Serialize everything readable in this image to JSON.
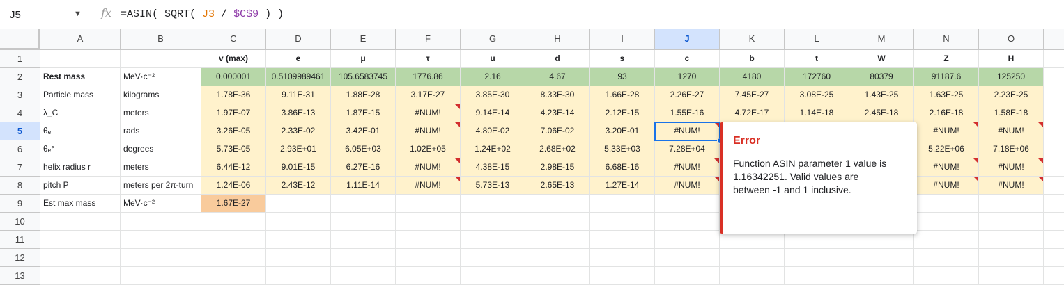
{
  "formula_bar": {
    "cell_ref": "J5",
    "fx": "fx",
    "formula_parts": [
      "=ASIN( SQRT( ",
      "J3",
      " / ",
      "$C$9",
      " ) )"
    ]
  },
  "columns": [
    "A",
    "B",
    "C",
    "D",
    "E",
    "F",
    "G",
    "H",
    "I",
    "J",
    "K",
    "L",
    "M",
    "N",
    "O"
  ],
  "selected_cell": "J5",
  "rows": [
    {
      "num": "1",
      "cells": [
        "",
        "",
        "v (max)",
        "e",
        "μ",
        "τ",
        "u",
        "d",
        "s",
        "c",
        "b",
        "t",
        "W",
        "Z",
        "H"
      ]
    },
    {
      "num": "2",
      "cells": [
        "Rest mass",
        "MeV·c⁻²",
        "0.000001",
        "0.5109989461",
        "105.6583745",
        "1776.86",
        "2.16",
        "4.67",
        "93",
        "1270",
        "4180",
        "172760",
        "80379",
        "91187.6",
        "125250"
      ]
    },
    {
      "num": "3",
      "cells": [
        "Particle mass",
        "kilograms",
        "1.78E-36",
        "9.11E-31",
        "1.88E-28",
        "3.17E-27",
        "3.85E-30",
        "8.33E-30",
        "1.66E-28",
        "2.26E-27",
        "7.45E-27",
        "3.08E-25",
        "1.43E-25",
        "1.63E-25",
        "2.23E-25"
      ]
    },
    {
      "num": "4",
      "cells": [
        "λ_C",
        "meters",
        "1.97E-07",
        "3.86E-13",
        "1.87E-15",
        "#NUM!",
        "9.14E-14",
        "4.23E-14",
        "2.12E-15",
        "1.55E-16",
        "4.72E-17",
        "1.14E-18",
        "2.45E-18",
        "2.16E-18",
        "1.58E-18"
      ]
    },
    {
      "num": "5",
      "cells": [
        "θₑ",
        "rads",
        "3.26E-05",
        "2.33E-02",
        "3.42E-01",
        "#NUM!",
        "4.80E-02",
        "7.06E-02",
        "3.20E-01",
        "#NUM!",
        "",
        "",
        "",
        "#NUM!",
        "#NUM!"
      ]
    },
    {
      "num": "6",
      "cells": [
        "θₑ°",
        "degrees",
        "5.73E-05",
        "2.93E+01",
        "6.05E+03",
        "1.02E+05",
        "1.24E+02",
        "2.68E+02",
        "5.33E+03",
        "7.28E+04",
        "",
        "",
        "",
        "5.22E+06",
        "7.18E+06"
      ]
    },
    {
      "num": "7",
      "cells": [
        "helix radius r",
        "meters",
        "6.44E-12",
        "9.01E-15",
        "6.27E-16",
        "#NUM!",
        "4.38E-15",
        "2.98E-15",
        "6.68E-16",
        "#NUM!",
        "",
        "",
        "",
        "#NUM!",
        "#NUM!"
      ]
    },
    {
      "num": "8",
      "cells": [
        "pitch P",
        "meters per 2π-turn",
        "1.24E-06",
        "2.43E-12",
        "1.11E-14",
        "#NUM!",
        "5.73E-13",
        "2.65E-13",
        "1.27E-14",
        "#NUM!",
        "",
        "",
        "",
        "#NUM!",
        "#NUM!"
      ]
    },
    {
      "num": "9",
      "cells": [
        "Est max mass",
        "MeV·c⁻²",
        "1.67E-27",
        "",
        "",
        "",
        "",
        "",
        "",
        "",
        "",
        "",
        "",
        "",
        ""
      ]
    },
    {
      "num": "10",
      "cells": [
        "",
        "",
        "",
        "",
        "",
        "",
        "",
        "",
        "",
        "",
        "",
        "",
        "",
        "",
        ""
      ]
    },
    {
      "num": "11",
      "cells": [
        "",
        "",
        "",
        "",
        "",
        "",
        "",
        "",
        "",
        "",
        "",
        "",
        "",
        "",
        ""
      ]
    },
    {
      "num": "12",
      "cells": [
        "",
        "",
        "",
        "",
        "",
        "",
        "",
        "",
        "",
        "",
        "",
        "",
        "",
        "",
        ""
      ]
    },
    {
      "num": "13",
      "cells": [
        "",
        "",
        "",
        "",
        "",
        "",
        "",
        "",
        "",
        "",
        "",
        "",
        "",
        "",
        ""
      ]
    }
  ],
  "error_tooltip": {
    "title": "Error",
    "message": "Function ASIN parameter 1 value is 1.16342251. Valid values are between -1 and 1 inclusive."
  },
  "colors": {
    "green": "#b7d7a8",
    "yellow": "#fff2cc",
    "orange": "#f9cb9c",
    "error": "#d93025",
    "selection": "#1a73e8"
  }
}
